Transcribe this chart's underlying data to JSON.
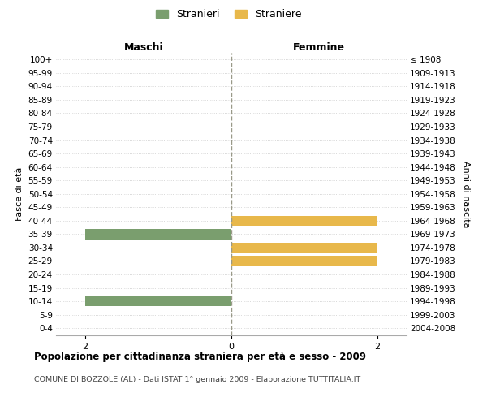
{
  "age_groups": [
    "100+",
    "95-99",
    "90-94",
    "85-89",
    "80-84",
    "75-79",
    "70-74",
    "65-69",
    "60-64",
    "55-59",
    "50-54",
    "45-49",
    "40-44",
    "35-39",
    "30-34",
    "25-29",
    "20-24",
    "15-19",
    "10-14",
    "5-9",
    "0-4"
  ],
  "birth_years": [
    "≤ 1908",
    "1909-1913",
    "1914-1918",
    "1919-1923",
    "1924-1928",
    "1929-1933",
    "1934-1938",
    "1939-1943",
    "1944-1948",
    "1949-1953",
    "1954-1958",
    "1959-1963",
    "1964-1968",
    "1969-1973",
    "1974-1978",
    "1979-1983",
    "1984-1988",
    "1989-1993",
    "1994-1998",
    "1999-2003",
    "2004-2008"
  ],
  "maschi": [
    0,
    0,
    0,
    0,
    0,
    0,
    0,
    0,
    0,
    0,
    0,
    0,
    0,
    2,
    0,
    0,
    0,
    0,
    2,
    0,
    0
  ],
  "femmine": [
    0,
    0,
    0,
    0,
    0,
    0,
    0,
    0,
    0,
    0,
    0,
    0,
    2,
    0,
    2,
    2,
    0,
    0,
    0,
    0,
    0
  ],
  "color_maschi": "#7a9e6e",
  "color_femmine": "#e8b84b",
  "title_main": "Popolazione per cittadinanza straniera per età e sesso - 2009",
  "title_sub": "COMUNE DI BOZZOLE (AL) - Dati ISTAT 1° gennaio 2009 - Elaborazione TUTTITALIA.IT",
  "ylabel_left": "Fasce di età",
  "ylabel_right": "Anni di nascita",
  "xlabel_left": "Maschi",
  "xlabel_right": "Femmine",
  "legend_maschi": "Stranieri",
  "legend_femmine": "Straniere",
  "xlim": 2.4,
  "xticks": [
    -2,
    0,
    2
  ],
  "xticklabels": [
    "2",
    "0",
    "2"
  ],
  "background_color": "#ffffff",
  "grid_color": "#cccccc",
  "center_line_color": "#aaaaaa",
  "center_line_style": "--"
}
